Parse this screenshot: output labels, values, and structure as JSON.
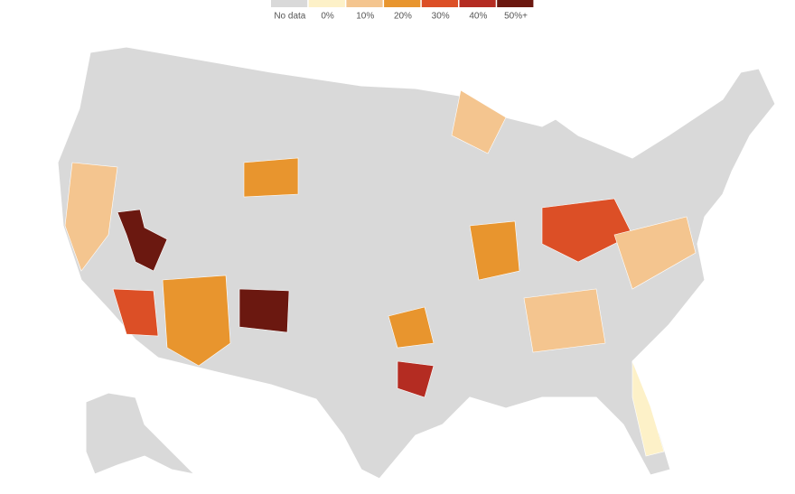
{
  "legend": {
    "items": [
      {
        "label": "No data",
        "color": "#d9d9d9"
      },
      {
        "label": "0%",
        "color": "#fdf1c8"
      },
      {
        "label": "10%",
        "color": "#f4c58f"
      },
      {
        "label": "20%",
        "color": "#e8952e"
      },
      {
        "label": "30%",
        "color": "#dc4f26"
      },
      {
        "label": "40%",
        "color": "#b42c22"
      },
      {
        "label": "50%+",
        "color": "#6b1810"
      }
    ]
  }
}
